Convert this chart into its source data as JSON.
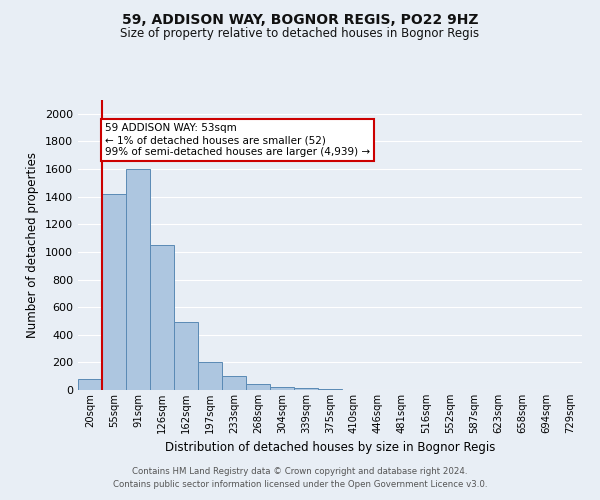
{
  "title_line1": "59, ADDISON WAY, BOGNOR REGIS, PO22 9HZ",
  "title_line2": "Size of property relative to detached houses in Bognor Regis",
  "xlabel": "Distribution of detached houses by size in Bognor Regis",
  "ylabel": "Number of detached properties",
  "bin_labels": [
    "20sqm",
    "55sqm",
    "91sqm",
    "126sqm",
    "162sqm",
    "197sqm",
    "233sqm",
    "268sqm",
    "304sqm",
    "339sqm",
    "375sqm",
    "410sqm",
    "446sqm",
    "481sqm",
    "516sqm",
    "552sqm",
    "587sqm",
    "623sqm",
    "658sqm",
    "694sqm",
    "729sqm"
  ],
  "bar_heights": [
    80,
    1420,
    1600,
    1050,
    490,
    205,
    105,
    45,
    25,
    15,
    10,
    0,
    0,
    0,
    0,
    0,
    0,
    0,
    0,
    0,
    0
  ],
  "bar_color": "#adc6e0",
  "bar_edgecolor": "#5a8ab5",
  "vline_x": 0.5,
  "vline_color": "#cc0000",
  "annotation_text": "59 ADDISON WAY: 53sqm\n← 1% of detached houses are smaller (52)\n99% of semi-detached houses are larger (4,939) →",
  "annotation_box_color": "#ffffff",
  "annotation_box_edgecolor": "#cc0000",
  "ylim": [
    0,
    2100
  ],
  "yticks": [
    0,
    200,
    400,
    600,
    800,
    1000,
    1200,
    1400,
    1600,
    1800,
    2000
  ],
  "background_color": "#e8eef5",
  "plot_background": "#e8eef5",
  "grid_color": "#ffffff",
  "footer_line1": "Contains HM Land Registry data © Crown copyright and database right 2024.",
  "footer_line2": "Contains public sector information licensed under the Open Government Licence v3.0."
}
